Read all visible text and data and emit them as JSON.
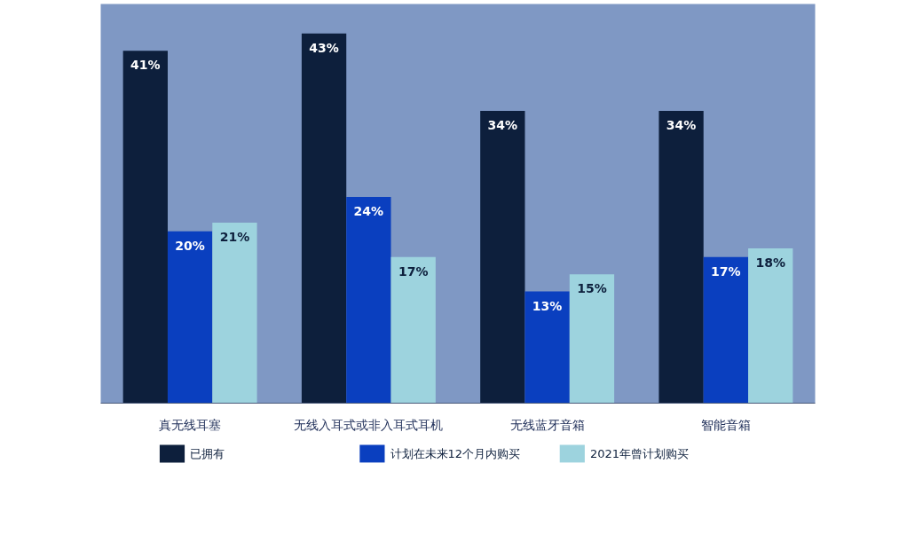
{
  "chart_data": {
    "type": "bar",
    "categories": [
      "真无线耳塞",
      "无线入耳式或非入耳式耳机",
      "无线蓝牙音箱",
      "智能音箱"
    ],
    "series": [
      {
        "name": "已拥有",
        "color": "#0d1f3c",
        "values": [
          41,
          43,
          34,
          34
        ],
        "value_labels": [
          "41%",
          "43%",
          "34%",
          "34%"
        ]
      },
      {
        "name": "计划在未来12个月内购买",
        "color": "#0a3fbf",
        "values": [
          20,
          24,
          13,
          17
        ],
        "value_labels": [
          "20%",
          "24%",
          "13%",
          "17%"
        ]
      },
      {
        "name": "2021年曾计划购买",
        "color": "#9dd3de",
        "values": [
          21,
          17,
          15,
          18
        ],
        "value_labels": [
          "21%",
          "17%",
          "15%",
          "18%"
        ]
      }
    ],
    "grid": false,
    "legend": "bottom"
  }
}
